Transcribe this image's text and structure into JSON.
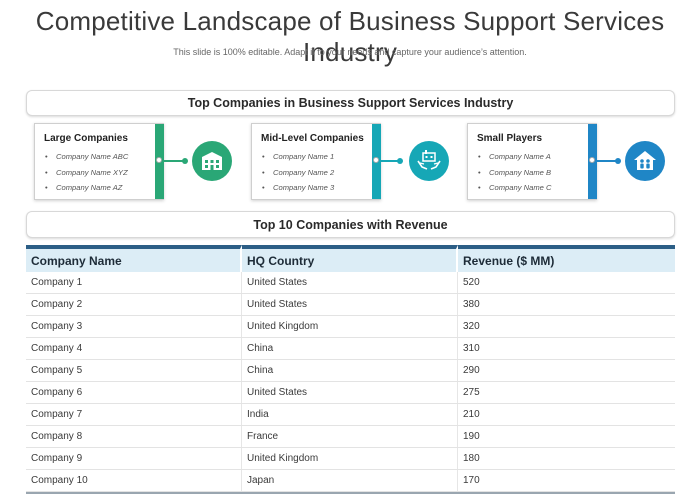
{
  "slide": {
    "title": "Competitive Landscape of Business Support Services Industry",
    "subtitle": "This slide is 100% editable. Adapt it to your needs and capture your audience’s attention."
  },
  "top_section": {
    "heading": "Top Companies in Business Support Services Industry",
    "cards": [
      {
        "title": "Large Companies",
        "items": [
          "Company Name ABC",
          "Company Name XYZ",
          "Company Name AZ"
        ],
        "color": "#2aa776",
        "icon": "building-icon"
      },
      {
        "title": "Mid-Level Companies",
        "items": [
          "Company Name 1",
          "Company Name 2",
          "Company Name 3"
        ],
        "color": "#16a7b6",
        "icon": "factory-in-hands-icon"
      },
      {
        "title": "Small Players",
        "items": [
          "Company Name A",
          "Company Name B",
          "Company Name C"
        ],
        "color": "#1f86c6",
        "icon": "house-with-people-icon"
      }
    ]
  },
  "revenue_section": {
    "heading": "Top 10 Companies with Revenue",
    "columns": [
      "Company Name",
      "HQ Country",
      "Revenue ($ MM)"
    ],
    "rows": [
      [
        "Company 1",
        "United States",
        "520"
      ],
      [
        "Company 2",
        "United States",
        "380"
      ],
      [
        "Company 3",
        "United Kingdom",
        "320"
      ],
      [
        "Company 4",
        "China",
        "310"
      ],
      [
        "Company 5",
        "China",
        "290"
      ],
      [
        "Company 6",
        "United States",
        "275"
      ],
      [
        "Company 7",
        "India",
        "210"
      ],
      [
        "Company 8",
        "France",
        "190"
      ],
      [
        "Company 9",
        "United Kingdom",
        "180"
      ],
      [
        "Company 10",
        "Japan",
        "170"
      ]
    ]
  }
}
